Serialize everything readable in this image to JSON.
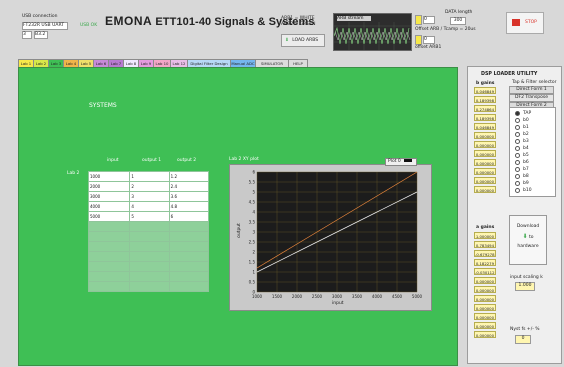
{
  "header": {
    "usb_label": "USB connection",
    "usb_device": "FT232R USB UART",
    "usb_status": "USB OK",
    "port_a": "3",
    "port_b": "B3.2",
    "brand": "EMONA",
    "title": "ETT101-40 Signals & Systems",
    "legend_a": "ARB1 = WHITE",
    "legend_b": "ARB2 = GREEN",
    "load_button": "LOAD ARBS",
    "scope_title": "ARB stream",
    "offset_a": "0",
    "offset_b": "0",
    "offset_label_a": "Offset ARB / Tcamp = 20us",
    "offset_label_b": "offset ARB1",
    "length_label": "DATA length",
    "length_value": "300",
    "stop_button": "STOP"
  },
  "tabs": [
    {
      "label": "Lab 1",
      "color": "#f6e84a"
    },
    {
      "label": "Lab 2",
      "color": "#d7e84a"
    },
    {
      "label": "Lab 3",
      "color": "#3fbf55"
    },
    {
      "label": "Lab 4",
      "color": "#f0b54a"
    },
    {
      "label": "Lab 5",
      "color": "#f0df6a"
    },
    {
      "label": "Lab 6",
      "color": "#c78ad8"
    },
    {
      "label": "Lab 7",
      "color": "#b77ad0"
    },
    {
      "label": "Lab 8",
      "color": "#f0e8ff"
    },
    {
      "label": "Lab 9",
      "color": "#e59ade"
    },
    {
      "label": "Lab 10",
      "color": "#f3a6c6"
    },
    {
      "label": "Lab 12",
      "color": "#e8bde6"
    },
    {
      "label": "Digital Filter Design",
      "color": "#b7d8f5"
    },
    {
      "label": "Manual ADC",
      "color": "#75b6ef"
    },
    {
      "label": "SIMULATOR",
      "color": "#dcdcdc"
    },
    {
      "label": "HELP",
      "color": "#dcdcdc"
    }
  ],
  "main": {
    "heading": "SYSTEMS",
    "col_input": "input",
    "col_output1": "output 1",
    "col_output2": "output 2",
    "row_label": "Lab 2",
    "rows": [
      [
        "1000",
        "1",
        "1.2"
      ],
      [
        "2000",
        "2",
        "2.4"
      ],
      [
        "3000",
        "3",
        "3.6"
      ],
      [
        "4000",
        "4",
        "4.8"
      ],
      [
        "5000",
        "5",
        "6"
      ]
    ],
    "plot_caption": "Lab 2 XY plot",
    "plot_legend": "Plot 0",
    "y_axis_label": "output",
    "x_axis_label": "input"
  },
  "chart_data": {
    "type": "line",
    "xlabel": "input",
    "ylabel": "output",
    "xlim": [
      1000,
      5000
    ],
    "ylim": [
      0,
      6
    ],
    "x_ticks": [
      "1000",
      "1500",
      "2000",
      "2500",
      "3000",
      "3500",
      "4000",
      "4500",
      "5000"
    ],
    "y_ticks": [
      "0",
      "0.5",
      "1",
      "1.5",
      "2",
      "2.5",
      "3",
      "3.5",
      "4",
      "4.5",
      "5",
      "5.5",
      "6"
    ],
    "x": [
      1000,
      2000,
      3000,
      4000,
      5000
    ],
    "series": [
      {
        "values": [
          1,
          2,
          3,
          4,
          5
        ],
        "color": "#f0f0f0"
      },
      {
        "values": [
          1.2,
          2.4,
          3.6,
          4.8,
          6
        ],
        "color": "#f08a3c"
      }
    ],
    "grid": true
  },
  "dsp": {
    "title": "DSP LOADER UTILITY",
    "selector_label": "Tap & Filter selector",
    "options": [
      "Direct Form 1",
      "DF2 Transpose",
      "Direct Form 2"
    ],
    "b_label": "b gains",
    "b_values": [
      "0.046849",
      "0.189398",
      "0.274864",
      "0.189398",
      "0.046849",
      "0.000000",
      "0.000000",
      "0.000000",
      "0.000000",
      "0.000000",
      "0.000000",
      "0.000000"
    ],
    "a_label": "a gains",
    "a_values": [
      "1.000000",
      "0.783494",
      "-0.679278",
      "0.182279",
      "-0.030112",
      "0.000000",
      "0.000000",
      "0.000000",
      "0.000000",
      "0.000000",
      "0.000000",
      "0.000000"
    ],
    "taps": [
      "TAP",
      "b0",
      "b1",
      "b2",
      "b3",
      "b4",
      "b5",
      "b6",
      "b7",
      "b8",
      "b9",
      "b10"
    ],
    "download_label": "Download",
    "to_label": "to",
    "hardware_label": "hardware",
    "scaling_label": "input scaling k",
    "scaling_value": "1.000",
    "fs_label": "Nyst fs +/- %",
    "fs_value": "0"
  }
}
